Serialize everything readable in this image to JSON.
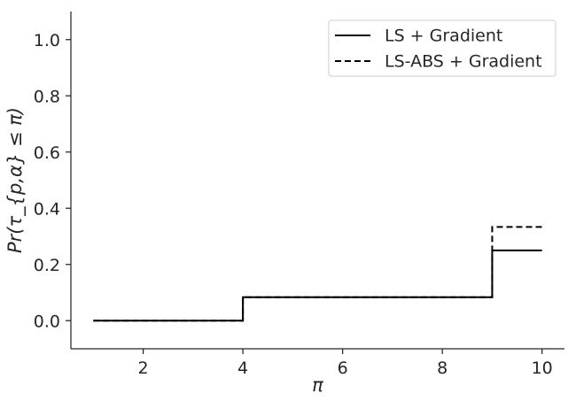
{
  "chart_data": {
    "type": "line",
    "title": "",
    "xlabel": "π",
    "ylabel": "Pr(τ_{p,α} ≤ π)",
    "xlim": [
      0.55,
      10.45
    ],
    "ylim": [
      -0.1,
      1.1
    ],
    "xticks": [
      2,
      4,
      6,
      8,
      10
    ],
    "xtick_labels": [
      "2",
      "4",
      "6",
      "8",
      "10"
    ],
    "yticks": [
      0.0,
      0.2,
      0.4,
      0.6,
      0.8,
      1.0
    ],
    "ytick_labels": [
      "0.0",
      "0.2",
      "0.4",
      "0.6",
      "0.8",
      "1.0"
    ],
    "grid": false,
    "legend_position": "top-right",
    "series": [
      {
        "name": "LS + Gradient",
        "style": "solid",
        "color": "#000000",
        "step": "post",
        "x": [
          1,
          4,
          9,
          10
        ],
        "y": [
          0.0,
          0.0833,
          0.25,
          0.25
        ]
      },
      {
        "name": "LS-ABS + Gradient",
        "style": "dashed",
        "color": "#000000",
        "step": "post",
        "x": [
          1,
          4,
          9,
          10
        ],
        "y": [
          0.0,
          0.0833,
          0.3333,
          0.3333
        ]
      }
    ]
  }
}
